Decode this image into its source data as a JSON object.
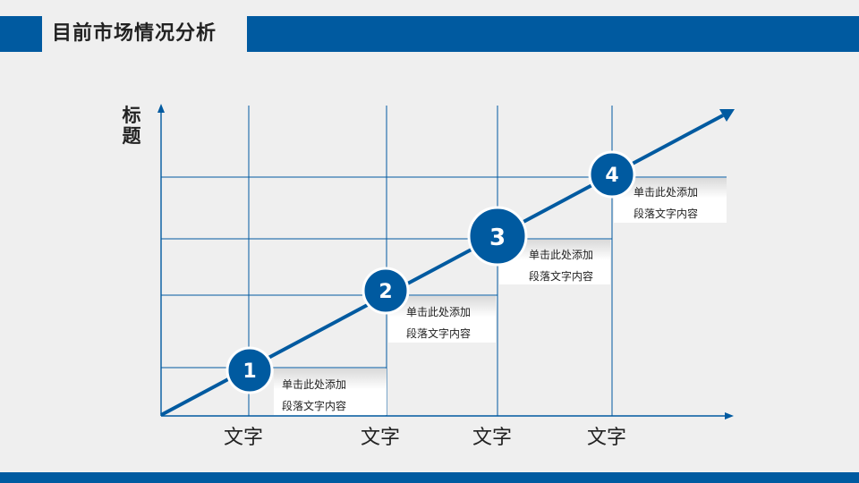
{
  "page": {
    "title": "目前市场情况分析"
  },
  "diagram": {
    "y_axis_title": "标题",
    "x_labels": [
      "文字",
      "文字",
      "文字",
      "文字"
    ],
    "steps": [
      {
        "number": "1",
        "line1": "单击此处添加",
        "line2": "段落文字内容"
      },
      {
        "number": "2",
        "line1": "单击此处添加",
        "line2": "段落文字内容"
      },
      {
        "number": "3",
        "line1": "单击此处添加",
        "line2": "段落文字内容"
      },
      {
        "number": "4",
        "line1": "单击此处添加",
        "line2": "段落文字内容"
      }
    ]
  },
  "colors": {
    "accent": "#005aa0",
    "background": "#efefef"
  }
}
